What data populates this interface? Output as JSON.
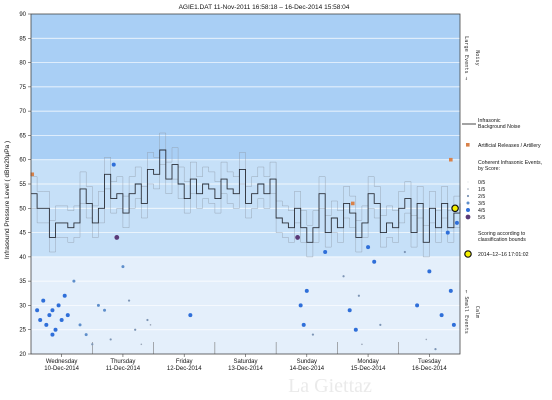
{
  "chart_data": {
    "type": "line",
    "title": "AGIE1.DAT  11-Nov-2011 16:58:18  –  16-Dec-2014 15:58:04",
    "ylabel": "Infrasound Pressure Level  ( dBre20μPa )",
    "ylim": [
      20,
      90
    ],
    "yticks": [
      20,
      25,
      30,
      35,
      40,
      45,
      50,
      55,
      60,
      65,
      70,
      75,
      80,
      85,
      90
    ],
    "xlim": [
      0,
      7
    ],
    "x_tick_labels": [
      {
        "day": "Wednesday",
        "date": "10-Dec-2014"
      },
      {
        "day": "Thursday",
        "date": "11-Dec-2014"
      },
      {
        "day": "Friday",
        "date": "12-Dec-2014"
      },
      {
        "day": "Saturday",
        "date": "13-Dec-2014"
      },
      {
        "day": "Sunday",
        "date": "14-Dec-2014"
      },
      {
        "day": "Monday",
        "date": "15-Dec-2014"
      },
      {
        "day": "Tuesday",
        "date": "16-Dec-2014"
      }
    ],
    "bands": [
      {
        "from": 60,
        "to": 90,
        "color": "#a9cff5"
      },
      {
        "from": 40,
        "to": 60,
        "color": "#c6e0f8"
      },
      {
        "from": 20,
        "to": 40,
        "color": "#e4effb"
      }
    ],
    "side_labels": {
      "upper_main": "Large Events →",
      "upper_sub": "Noisy",
      "lower_main": "← Small Events",
      "lower_sub": "Calm"
    },
    "legend": {
      "background_noise": "Infrasonic\nBackground Noise",
      "artillery": "Artificial Releases / Artillery",
      "coherent_title": "Coherent Infrasonic Events,\nby Score:",
      "scores": [
        {
          "label": "0/5",
          "color": "#c8cdd6",
          "size": 0.5
        },
        {
          "label": "1/5",
          "color": "#9aa6b8",
          "size": 0.8
        },
        {
          "label": "2/5",
          "color": "#7d95b5",
          "size": 1.1
        },
        {
          "label": "3/5",
          "color": "#5f8fcb",
          "size": 1.5
        },
        {
          "label": "4/5",
          "color": "#2f6fd9",
          "size": 2.0
        },
        {
          "label": "5/5",
          "color": "#5a3a78",
          "size": 2.4
        }
      ],
      "scoring_note": "Scoring according to\nclassification bounds",
      "highlight": "2014–12–16 17:01:02"
    },
    "series": [
      {
        "name": "Infrasonic Background Noise",
        "x": [
          0.0,
          0.1,
          0.2,
          0.3,
          0.4,
          0.5,
          0.6,
          0.7,
          0.8,
          0.9,
          1.0,
          1.1,
          1.2,
          1.3,
          1.4,
          1.5,
          1.6,
          1.7,
          1.8,
          1.9,
          2.0,
          2.1,
          2.2,
          2.3,
          2.4,
          2.5,
          2.6,
          2.7,
          2.8,
          2.9,
          3.0,
          3.1,
          3.2,
          3.3,
          3.4,
          3.5,
          3.6,
          3.7,
          3.8,
          3.9,
          4.0,
          4.1,
          4.2,
          4.3,
          4.4,
          4.5,
          4.6,
          4.7,
          4.8,
          4.9,
          5.0,
          5.1,
          5.2,
          5.3,
          5.4,
          5.5,
          5.6,
          5.7,
          5.8,
          5.9,
          6.0,
          6.1,
          6.2,
          6.3,
          6.4,
          6.5,
          6.6,
          6.7,
          6.8,
          6.9,
          7.0
        ],
        "values": [
          53,
          50,
          50,
          44,
          47,
          47,
          46,
          47,
          54,
          51,
          47,
          50,
          57,
          52,
          53,
          49,
          53,
          55,
          51,
          58,
          57,
          62,
          56,
          59,
          55,
          52,
          56,
          53,
          55,
          54,
          52,
          56,
          54,
          53,
          58,
          51,
          53,
          55,
          53,
          56,
          48,
          47,
          46,
          50,
          46,
          43,
          46,
          53,
          45,
          48,
          46,
          51,
          49,
          44,
          47,
          53,
          51,
          45,
          47,
          46,
          50,
          52,
          45,
          51,
          43,
          50,
          46,
          51,
          46,
          49,
          51
        ]
      },
      {
        "name": "Coherent Infrasonic Events",
        "x": [
          0.1,
          0.15,
          0.2,
          0.25,
          0.3,
          0.35,
          0.35,
          0.4,
          0.45,
          0.5,
          0.55,
          0.6,
          0.7,
          0.8,
          0.9,
          1.0,
          1.1,
          1.2,
          1.3,
          1.35,
          1.4,
          1.5,
          1.6,
          1.7,
          1.8,
          1.9,
          1.95,
          2.6,
          4.35,
          4.4,
          4.45,
          4.5,
          4.6,
          4.8,
          5.1,
          5.2,
          5.3,
          5.35,
          5.4,
          5.5,
          5.6,
          5.7,
          6.1,
          6.3,
          6.45,
          6.5,
          6.6,
          6.7,
          6.8,
          6.85,
          6.9,
          6.95,
          6.92
        ],
        "values": [
          29,
          27,
          31,
          26,
          28,
          29,
          24,
          25,
          30,
          27,
          32,
          28,
          35,
          26,
          24,
          22,
          30,
          29,
          23,
          59,
          44,
          38,
          31,
          25,
          22,
          27,
          26,
          28,
          44,
          30,
          26,
          33,
          24,
          41,
          36,
          29,
          25,
          32,
          22,
          42,
          39,
          26,
          41,
          30,
          23,
          37,
          21,
          28,
          45,
          33,
          26,
          47,
          50
        ],
        "scores": [
          4,
          4,
          4,
          4,
          4,
          4,
          4,
          4,
          4,
          4,
          4,
          4,
          3,
          3,
          3,
          2,
          3,
          3,
          2,
          4,
          5,
          3,
          2,
          2,
          1,
          2,
          1,
          4,
          5,
          4,
          4,
          4,
          2,
          4,
          2,
          4,
          4,
          2,
          1,
          4,
          4,
          2,
          2,
          4,
          1,
          4,
          2,
          4,
          4,
          4,
          4,
          4,
          6
        ]
      },
      {
        "name": "Artificial Releases / Artillery",
        "x": [
          0.02,
          5.25,
          6.85
        ],
        "values": [
          57,
          51,
          60
        ]
      }
    ]
  },
  "watermark": "La Giettaz"
}
